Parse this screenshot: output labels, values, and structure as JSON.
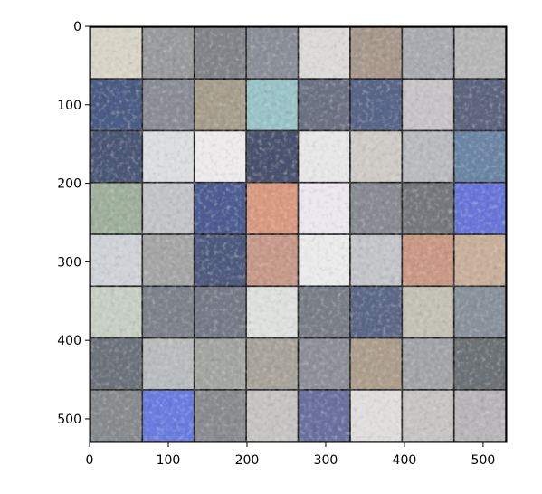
{
  "chart_data": {
    "type": "heatmap",
    "description_kind": "image grid",
    "grid": {
      "rows": 8,
      "cols": 8,
      "tile_size": 64,
      "padding": 2
    },
    "xlim": [
      0,
      530
    ],
    "ylim": [
      530,
      0
    ],
    "xticks": [
      0,
      100,
      200,
      300,
      400,
      500
    ],
    "yticks": [
      0,
      100,
      200,
      300,
      400,
      500
    ],
    "xtick_labels": [
      "0",
      "100",
      "200",
      "300",
      "400",
      "500"
    ],
    "ytick_labels": [
      "0",
      "100",
      "200",
      "300",
      "400",
      "500"
    ],
    "title": "",
    "xlabel": "",
    "ylabel": "",
    "tiles": [
      [
        "#d8d4c6",
        "#9a9b9d",
        "#82858a",
        "#8b9099",
        "#dcdad8",
        "#a8998c",
        "#a9abb0",
        "#b6b7b6"
      ],
      [
        "#4b5e86",
        "#8b8e96",
        "#a79e8e",
        "#9ac4c8",
        "#6d7384",
        "#59678a",
        "#c6c4c6",
        "#5e6680"
      ],
      [
        "#4c5978",
        "#dcdddf",
        "#eceaea",
        "#4a5370",
        "#e8e7e8",
        "#cfcbc7",
        "#b9bbbf",
        "#6d87a6"
      ],
      [
        "#9fb09c",
        "#c2c4c8",
        "#4e5e93",
        "#d99a80",
        "#ece6ee",
        "#898c93",
        "#76797e",
        "#6977d8"
      ],
      [
        "#cfd2d6",
        "#a7a6a6",
        "#4f5c80",
        "#c79a8a",
        "#ebeaea",
        "#c3c5c9",
        "#c99a85",
        "#c8b09c"
      ],
      [
        "#c7cfc5",
        "#7f848c",
        "#767c88",
        "#dde0dc",
        "#7b8088",
        "#5c6988",
        "#c4c2b6",
        "#8a929c"
      ],
      [
        "#6e747d",
        "#b9bcbd",
        "#a3a6a1",
        "#a9a49b",
        "#8e9298",
        "#ad9f8c",
        "#a3a5a8",
        "#6e7378"
      ],
      [
        "#888c8f",
        "#6a7ee0",
        "#8a8c90",
        "#c6c4c2",
        "#6c71a0",
        "#e0dedc",
        "#c7c5c4",
        "#b8b6b8"
      ]
    ]
  }
}
